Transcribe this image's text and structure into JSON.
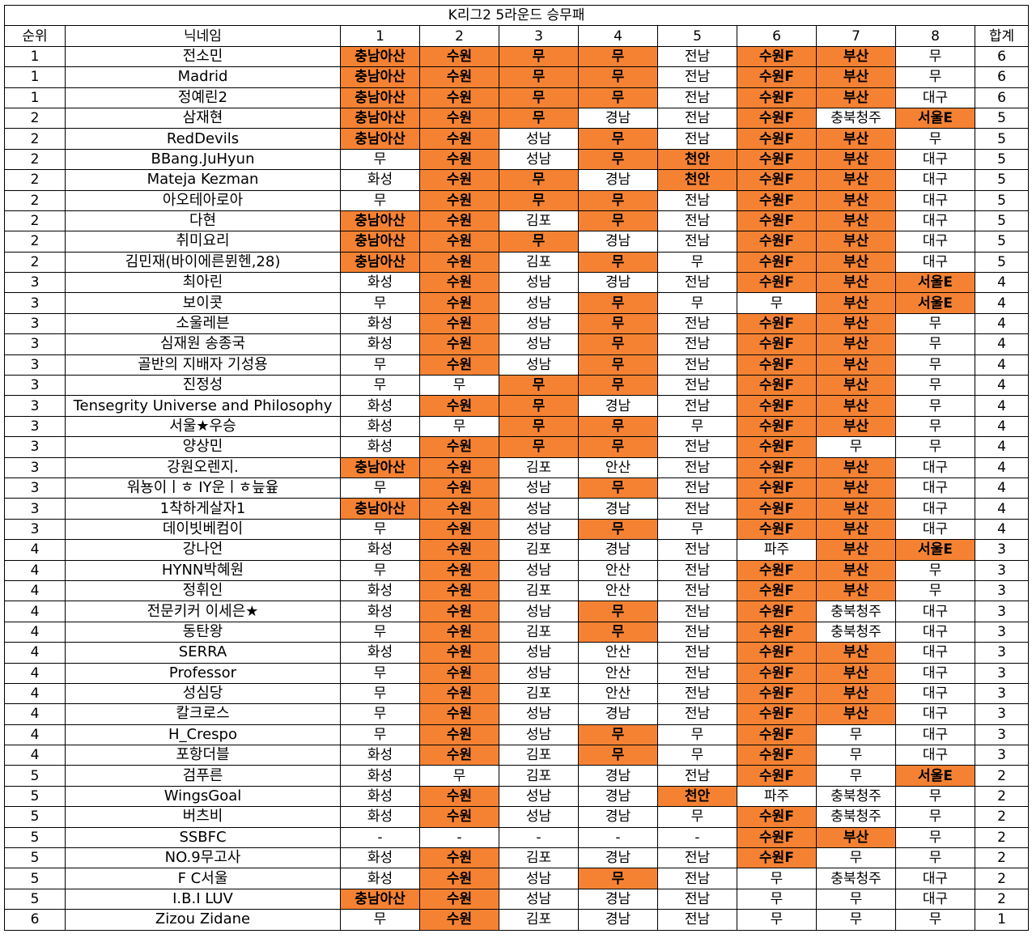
{
  "header": {
    "title": "K리그2 5라운드 승무패"
  },
  "table": {
    "columns": [
      "순위",
      "닉네임",
      "1",
      "2",
      "3",
      "4",
      "5",
      "6",
      "7",
      "8",
      "합계"
    ],
    "results": [
      "충남아산",
      "수원",
      "무",
      "무",
      "천안",
      "수원F",
      "부산",
      "서울E"
    ],
    "highlight_color": "#f58233",
    "rows": [
      [
        1,
        "전소민",
        "충남아산",
        "수원",
        "무",
        "무",
        "전남",
        "수원F",
        "부산",
        "무",
        6
      ],
      [
        1,
        "Madrid",
        "충남아산",
        "수원",
        "무",
        "무",
        "전남",
        "수원F",
        "부산",
        "무",
        6
      ],
      [
        1,
        "정예린2",
        "충남아산",
        "수원",
        "무",
        "무",
        "전남",
        "수원F",
        "부산",
        "대구",
        6
      ],
      [
        2,
        "삼재현",
        "충남아산",
        "수원",
        "무",
        "경남",
        "전남",
        "수원F",
        "충북청주",
        "서울E",
        5
      ],
      [
        2,
        "RedDevils",
        "충남아산",
        "수원",
        "성남",
        "무",
        "전남",
        "수원F",
        "부산",
        "무",
        5
      ],
      [
        2,
        "BBang.JuHyun",
        "무",
        "수원",
        "성남",
        "무",
        "천안",
        "수원F",
        "부산",
        "대구",
        5
      ],
      [
        2,
        "Mateja Kezman",
        "화성",
        "수원",
        "무",
        "경남",
        "천안",
        "수원F",
        "부산",
        "대구",
        5
      ],
      [
        2,
        "아오테아로아",
        "무",
        "수원",
        "무",
        "무",
        "전남",
        "수원F",
        "부산",
        "대구",
        5
      ],
      [
        2,
        "다현",
        "충남아산",
        "수원",
        "김포",
        "무",
        "전남",
        "수원F",
        "부산",
        "대구",
        5
      ],
      [
        2,
        "취미요리",
        "충남아산",
        "수원",
        "무",
        "경남",
        "전남",
        "수원F",
        "부산",
        "대구",
        5
      ],
      [
        2,
        "김민재(바이에른뮌헨,28)",
        "충남아산",
        "수원",
        "김포",
        "무",
        "무",
        "수원F",
        "부산",
        "대구",
        5
      ],
      [
        3,
        "최아린",
        "화성",
        "수원",
        "성남",
        "경남",
        "전남",
        "수원F",
        "부산",
        "서울E",
        4
      ],
      [
        3,
        "보이콧",
        "무",
        "수원",
        "성남",
        "무",
        "무",
        "무",
        "부산",
        "서울E",
        4
      ],
      [
        3,
        "소울레븐",
        "화성",
        "수원",
        "성남",
        "무",
        "전남",
        "수원F",
        "부산",
        "무",
        4
      ],
      [
        3,
        "심재원 송종국",
        "화성",
        "수원",
        "성남",
        "무",
        "전남",
        "수원F",
        "부산",
        "무",
        4
      ],
      [
        3,
        "골반의 지배자 기성용",
        "무",
        "수원",
        "성남",
        "무",
        "전남",
        "수원F",
        "부산",
        "무",
        4
      ],
      [
        3,
        "진정성",
        "무",
        "무",
        "무",
        "무",
        "전남",
        "수원F",
        "부산",
        "무",
        4
      ],
      [
        3,
        "Tensegrity Universe and Philosophy",
        "화성",
        "수원",
        "무",
        "경남",
        "전남",
        "수원F",
        "부산",
        "무",
        4
      ],
      [
        3,
        "서울★우승",
        "화성",
        "무",
        "무",
        "무",
        "무",
        "수원F",
        "부산",
        "무",
        4
      ],
      [
        3,
        "양상민",
        "화성",
        "수원",
        "무",
        "무",
        "전남",
        "수원F",
        "무",
        "무",
        4
      ],
      [
        3,
        "강원오렌지.",
        "충남아산",
        "수원",
        "김포",
        "안산",
        "전남",
        "수원F",
        "부산",
        "대구",
        4
      ],
      [
        3,
        "워뇽이ㅣㅎ IY운ㅣㅎ늪윺",
        "무",
        "수원",
        "성남",
        "무",
        "전남",
        "수원F",
        "부산",
        "대구",
        4
      ],
      [
        3,
        "1착하게살자1",
        "충남아산",
        "수원",
        "성남",
        "경남",
        "전남",
        "수원F",
        "부산",
        "대구",
        4
      ],
      [
        3,
        "데이빗베컴이",
        "무",
        "수원",
        "성남",
        "무",
        "무",
        "수원F",
        "부산",
        "대구",
        4
      ],
      [
        4,
        "강나언",
        "화성",
        "수원",
        "김포",
        "경남",
        "전남",
        "파주",
        "부산",
        "서울E",
        3
      ],
      [
        4,
        "HYNN박혜원",
        "무",
        "수원",
        "성남",
        "안산",
        "전남",
        "수원F",
        "부산",
        "무",
        3
      ],
      [
        4,
        "정휘인",
        "화성",
        "수원",
        "김포",
        "안산",
        "전남",
        "수원F",
        "부산",
        "무",
        3
      ],
      [
        4,
        "전문키커 이세은★",
        "화성",
        "수원",
        "성남",
        "무",
        "전남",
        "수원F",
        "충북청주",
        "대구",
        3
      ],
      [
        4,
        "동탄왕",
        "무",
        "수원",
        "김포",
        "무",
        "전남",
        "수원F",
        "충북청주",
        "대구",
        3
      ],
      [
        4,
        "SERRA",
        "화성",
        "수원",
        "성남",
        "안산",
        "전남",
        "수원F",
        "부산",
        "대구",
        3
      ],
      [
        4,
        "Professor",
        "무",
        "수원",
        "성남",
        "안산",
        "전남",
        "수원F",
        "부산",
        "대구",
        3
      ],
      [
        4,
        "성심당",
        "무",
        "수원",
        "김포",
        "안산",
        "전남",
        "수원F",
        "부산",
        "대구",
        3
      ],
      [
        4,
        "칼크로스",
        "무",
        "수원",
        "성남",
        "경남",
        "전남",
        "수원F",
        "부산",
        "대구",
        3
      ],
      [
        4,
        "H_Crespo",
        "무",
        "수원",
        "성남",
        "무",
        "무",
        "수원F",
        "무",
        "대구",
        3
      ],
      [
        4,
        "포항더블",
        "화성",
        "수원",
        "김포",
        "무",
        "무",
        "수원F",
        "무",
        "대구",
        3
      ],
      [
        5,
        "검푸른",
        "화성",
        "무",
        "김포",
        "경남",
        "전남",
        "수원F",
        "무",
        "서울E",
        2
      ],
      [
        5,
        "WingsGoal",
        "화성",
        "수원",
        "성남",
        "경남",
        "천안",
        "파주",
        "충북청주",
        "무",
        2
      ],
      [
        5,
        "버츠비",
        "화성",
        "수원",
        "성남",
        "경남",
        "무",
        "수원F",
        "충북청주",
        "무",
        2
      ],
      [
        5,
        "SSBFC",
        "-",
        "-",
        "-",
        "-",
        "-",
        "수원F",
        "부산",
        "무",
        2
      ],
      [
        5,
        "NO.9무고사",
        "화성",
        "수원",
        "김포",
        "경남",
        "전남",
        "수원F",
        "무",
        "무",
        2
      ],
      [
        5,
        "F C서울",
        "화성",
        "수원",
        "성남",
        "무",
        "전남",
        "무",
        "충북청주",
        "대구",
        2
      ],
      [
        5,
        "I.B.I LUV",
        "충남아산",
        "수원",
        "성남",
        "경남",
        "전남",
        "무",
        "무",
        "대구",
        2
      ],
      [
        6,
        "Zizou Zidane",
        "무",
        "수원",
        "김포",
        "경남",
        "전남",
        "무",
        "무",
        "무",
        1
      ]
    ]
  }
}
